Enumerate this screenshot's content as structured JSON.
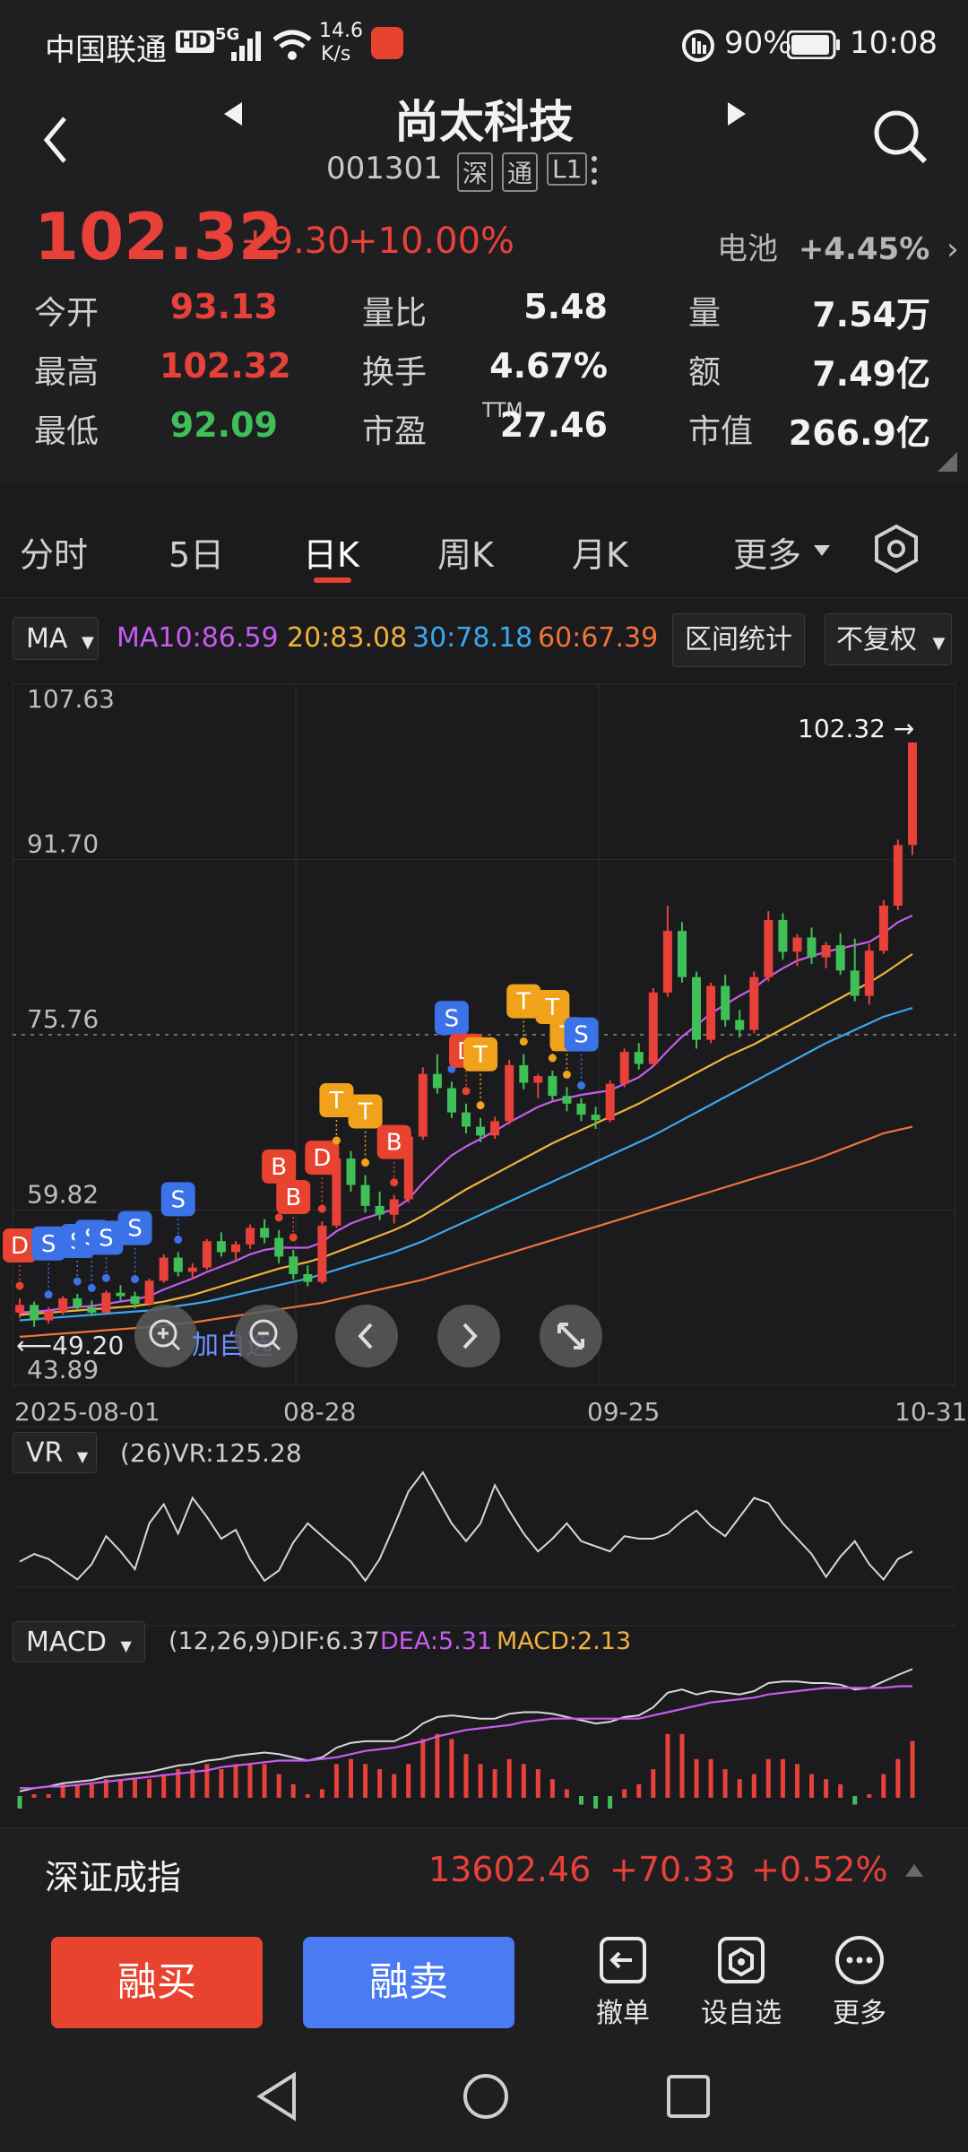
{
  "status_bar": {
    "carrier": "中国联通",
    "hd_badge": "HD",
    "net_type": "5G",
    "speed_value": "14.6",
    "speed_unit": "K/s",
    "battery_percent": "90%",
    "time": "10:08"
  },
  "header": {
    "title": "尚太科技",
    "code": "001301",
    "tags": [
      "深",
      "通",
      "L1"
    ]
  },
  "quote": {
    "price": "102.32",
    "change": "+9.30",
    "change_pct": "+10.00%",
    "sector_name": "电池",
    "sector_change": "+4.45%",
    "stats": [
      {
        "label": "今开",
        "value": "93.13",
        "color": "#e8413a"
      },
      {
        "label": "量比",
        "value": "5.48",
        "color": "#f2f2f2"
      },
      {
        "label": "量",
        "value": "7.54万",
        "color": "#f2f2f2"
      },
      {
        "label": "最高",
        "value": "102.32",
        "color": "#e8413a"
      },
      {
        "label": "换手",
        "value": "4.67%",
        "color": "#f2f2f2"
      },
      {
        "label": "额",
        "value": "7.49亿",
        "color": "#f2f2f2"
      },
      {
        "label": "最低",
        "value": "92.09",
        "color": "#3fbf57"
      },
      {
        "label": "市盈",
        "label_sup": "TTM",
        "value": "27.46",
        "color": "#f2f2f2"
      },
      {
        "label": "市值",
        "value": "266.9亿",
        "color": "#f2f2f2"
      }
    ]
  },
  "tabs": {
    "items": [
      "分时",
      "5日",
      "日K",
      "周K",
      "月K",
      "更多"
    ],
    "active": "日K"
  },
  "indicators": {
    "main_select": "MA",
    "ma10": "MA10:86.59",
    "ma20": "20:83.08",
    "ma30": "30:78.18",
    "ma60": "60:67.39",
    "range_stats_btn": "区间统计",
    "adjust_btn": "不复权",
    "colors": {
      "ma10": "#c75bf0",
      "ma20": "#f0b33a",
      "ma30": "#3aa8f0",
      "ma60": "#f0733a"
    }
  },
  "chart_data": {
    "type": "candlestick",
    "y_ticks": [
      "107.63",
      "91.70",
      "75.76",
      "59.82",
      "43.89"
    ],
    "ylim": [
      43.89,
      107.63
    ],
    "x_labels": [
      "2025-08-01",
      "08-28",
      "09-25",
      "10-31"
    ],
    "last_price_label": "102.32",
    "low_marker_label": "49.20",
    "add_watch_label": "加自选",
    "vr": {
      "select": "VR",
      "label": "(26)VR:125.28"
    },
    "macd": {
      "select": "MACD",
      "params": "(12,26,9)DIF:6.37",
      "dea": "DEA:5.31",
      "macd": "MACD:2.13"
    },
    "candles": [
      [
        50.5,
        51.8,
        50.0,
        51.2
      ],
      [
        51.2,
        51.5,
        49.2,
        49.8
      ],
      [
        49.8,
        51.0,
        49.5,
        50.6
      ],
      [
        50.6,
        52.0,
        50.3,
        51.8
      ],
      [
        51.8,
        52.2,
        50.8,
        51.0
      ],
      [
        51.0,
        51.6,
        50.2,
        50.5
      ],
      [
        50.5,
        52.5,
        50.4,
        52.3
      ],
      [
        52.3,
        53.0,
        51.6,
        52.0
      ],
      [
        52.0,
        52.4,
        50.9,
        51.3
      ],
      [
        51.3,
        53.6,
        51.1,
        53.4
      ],
      [
        53.4,
        55.8,
        53.2,
        55.5
      ],
      [
        55.5,
        56.0,
        53.8,
        54.2
      ],
      [
        54.2,
        55.0,
        53.5,
        54.6
      ],
      [
        54.6,
        57.2,
        54.4,
        57.0
      ],
      [
        57.0,
        57.8,
        55.6,
        56.0
      ],
      [
        56.0,
        57.0,
        55.2,
        56.7
      ],
      [
        56.7,
        58.5,
        56.3,
        58.2
      ],
      [
        58.2,
        59.0,
        56.8,
        57.3
      ],
      [
        57.3,
        58.0,
        55.0,
        55.6
      ],
      [
        55.6,
        56.2,
        53.5,
        54.0
      ],
      [
        54.0,
        54.8,
        52.9,
        53.3
      ],
      [
        53.3,
        58.8,
        53.1,
        58.4
      ],
      [
        58.4,
        65.0,
        58.2,
        64.5
      ],
      [
        64.5,
        65.2,
        61.5,
        62.1
      ],
      [
        62.1,
        63.0,
        59.6,
        60.2
      ],
      [
        60.2,
        61.5,
        58.9,
        59.4
      ],
      [
        59.4,
        61.2,
        58.6,
        60.8
      ],
      [
        60.8,
        67.0,
        60.5,
        66.5
      ],
      [
        66.5,
        72.8,
        66.2,
        72.2
      ],
      [
        72.2,
        74.0,
        70.4,
        70.9
      ],
      [
        70.9,
        71.5,
        68.2,
        68.7
      ],
      [
        68.7,
        69.5,
        66.8,
        67.4
      ],
      [
        67.4,
        68.2,
        66.0,
        66.6
      ],
      [
        66.6,
        68.3,
        66.3,
        67.9
      ],
      [
        67.9,
        73.5,
        67.6,
        73.0
      ],
      [
        73.0,
        74.0,
        70.8,
        71.4
      ],
      [
        71.4,
        72.2,
        70.0,
        72.0
      ],
      [
        72.0,
        72.5,
        69.8,
        70.2
      ],
      [
        70.2,
        71.0,
        68.8,
        69.5
      ],
      [
        69.5,
        70.0,
        67.9,
        68.5
      ],
      [
        68.5,
        69.2,
        67.2,
        68.0
      ],
      [
        68.0,
        71.6,
        67.8,
        71.3
      ],
      [
        71.3,
        74.5,
        71.0,
        74.2
      ],
      [
        74.2,
        75.0,
        72.6,
        73.1
      ],
      [
        73.1,
        80.0,
        72.9,
        79.6
      ],
      [
        79.6,
        87.5,
        79.2,
        85.2
      ],
      [
        85.2,
        86.0,
        80.5,
        81.0
      ],
      [
        81.0,
        81.5,
        74.5,
        75.3
      ],
      [
        75.3,
        80.5,
        75.0,
        80.2
      ],
      [
        80.2,
        81.2,
        76.5,
        77.1
      ],
      [
        77.1,
        78.0,
        75.5,
        76.2
      ],
      [
        76.2,
        81.5,
        75.9,
        81.0
      ],
      [
        81.0,
        87.0,
        80.6,
        86.2
      ],
      [
        86.2,
        86.8,
        82.6,
        83.3
      ],
      [
        83.3,
        84.9,
        82.0,
        84.6
      ],
      [
        84.6,
        85.5,
        82.2,
        82.8
      ],
      [
        82.8,
        84.2,
        81.8,
        83.9
      ],
      [
        83.9,
        85.0,
        81.2,
        81.6
      ],
      [
        81.6,
        84.5,
        78.8,
        79.3
      ],
      [
        79.3,
        84.0,
        78.5,
        83.4
      ],
      [
        83.4,
        88.0,
        83.1,
        87.5
      ],
      [
        87.5,
        93.5,
        87.1,
        93.0
      ],
      [
        93.0,
        102.32,
        92.09,
        102.32
      ]
    ],
    "ma10": [
      50.5,
      50.6,
      50.7,
      50.9,
      51.0,
      51.1,
      51.3,
      51.5,
      51.7,
      52.0,
      52.6,
      53.1,
      53.6,
      54.2,
      54.7,
      55.2,
      55.8,
      56.2,
      56.4,
      56.4,
      56.4,
      56.9,
      57.9,
      58.6,
      59.1,
      59.5,
      59.9,
      60.8,
      62.3,
      63.6,
      64.8,
      65.6,
      66.3,
      67.0,
      67.8,
      68.5,
      69.2,
      69.7,
      70.0,
      70.3,
      70.5,
      70.7,
      71.3,
      71.9,
      72.9,
      74.3,
      75.6,
      76.6,
      77.7,
      78.5,
      79.3,
      80.0,
      81.0,
      81.8,
      82.5,
      82.9,
      83.3,
      83.6,
      83.9,
      84.2,
      85.0,
      86.0,
      86.6
    ],
    "ma20": [
      50.3,
      50.4,
      50.5,
      50.6,
      50.7,
      50.8,
      50.9,
      51.0,
      51.1,
      51.3,
      51.5,
      51.8,
      52.1,
      52.5,
      52.9,
      53.3,
      53.7,
      54.1,
      54.5,
      54.8,
      55.1,
      55.5,
      56.0,
      56.5,
      57.0,
      57.5,
      58.0,
      58.6,
      59.3,
      60.1,
      60.9,
      61.7,
      62.4,
      63.1,
      63.8,
      64.5,
      65.2,
      65.9,
      66.5,
      67.1,
      67.7,
      68.3,
      68.9,
      69.5,
      70.2,
      70.9,
      71.6,
      72.3,
      73.0,
      73.7,
      74.3,
      74.9,
      75.6,
      76.3,
      77.0,
      77.7,
      78.4,
      79.1,
      79.8,
      80.5,
      81.3,
      82.2,
      83.1
    ],
    "ma30": [
      49.8,
      49.9,
      50.0,
      50.1,
      50.2,
      50.3,
      50.4,
      50.5,
      50.6,
      50.7,
      50.9,
      51.1,
      51.3,
      51.5,
      51.8,
      52.1,
      52.4,
      52.7,
      53.0,
      53.3,
      53.6,
      54.0,
      54.4,
      54.8,
      55.2,
      55.6,
      56.0,
      56.5,
      57.0,
      57.6,
      58.2,
      58.8,
      59.4,
      60.0,
      60.6,
      61.2,
      61.8,
      62.4,
      63.0,
      63.6,
      64.2,
      64.8,
      65.4,
      66.0,
      66.6,
      67.3,
      68.0,
      68.7,
      69.4,
      70.1,
      70.8,
      71.5,
      72.2,
      72.9,
      73.6,
      74.3,
      75.0,
      75.6,
      76.2,
      76.8,
      77.4,
      77.8,
      78.2
    ],
    "ma60": [
      48.3,
      48.4,
      48.5,
      48.6,
      48.7,
      48.8,
      48.9,
      49.0,
      49.1,
      49.2,
      49.3,
      49.5,
      49.6,
      49.8,
      50.0,
      50.2,
      50.4,
      50.6,
      50.8,
      51.0,
      51.2,
      51.4,
      51.7,
      52.0,
      52.3,
      52.6,
      52.9,
      53.2,
      53.5,
      53.9,
      54.3,
      54.7,
      55.1,
      55.5,
      55.9,
      56.3,
      56.7,
      57.1,
      57.5,
      57.9,
      58.3,
      58.7,
      59.1,
      59.5,
      59.9,
      60.3,
      60.7,
      61.1,
      61.5,
      61.9,
      62.3,
      62.7,
      63.1,
      63.5,
      63.9,
      64.3,
      64.8,
      65.3,
      65.8,
      66.3,
      66.8,
      67.1,
      67.4
    ],
    "vr_series": [
      110,
      116,
      112,
      104,
      96,
      108,
      130,
      118,
      104,
      140,
      155,
      132,
      160,
      145,
      128,
      135,
      112,
      95,
      103,
      125,
      140,
      130,
      120,
      110,
      95,
      112,
      138,
      165,
      180,
      160,
      140,
      126,
      140,
      170,
      150,
      132,
      118,
      128,
      140,
      126,
      122,
      118,
      130,
      128,
      128,
      132,
      142,
      150,
      138,
      130,
      145,
      160,
      156,
      140,
      128,
      116,
      98,
      114,
      126,
      108,
      96,
      112,
      118
    ],
    "dif_series": [
      -1.2,
      -1.0,
      -0.9,
      -0.7,
      -0.6,
      -0.5,
      -0.3,
      -0.2,
      -0.1,
      0.0,
      0.2,
      0.4,
      0.5,
      0.7,
      0.8,
      1.0,
      1.1,
      1.2,
      1.1,
      0.9,
      0.7,
      0.9,
      1.5,
      1.8,
      1.9,
      1.9,
      1.9,
      2.3,
      3.0,
      3.4,
      3.5,
      3.4,
      3.3,
      3.3,
      3.6,
      3.7,
      3.7,
      3.6,
      3.4,
      3.2,
      3.0,
      3.1,
      3.4,
      3.5,
      4.0,
      4.9,
      5.1,
      4.8,
      5.0,
      4.9,
      4.8,
      5.0,
      5.5,
      5.6,
      5.6,
      5.5,
      5.5,
      5.4,
      5.1,
      5.2,
      5.6,
      6.0,
      6.37
    ],
    "dea_series": [
      -1.0,
      -1.0,
      -0.9,
      -0.9,
      -0.8,
      -0.7,
      -0.6,
      -0.5,
      -0.4,
      -0.3,
      -0.2,
      -0.1,
      0.0,
      0.1,
      0.3,
      0.4,
      0.5,
      0.6,
      0.7,
      0.7,
      0.7,
      0.8,
      0.9,
      1.1,
      1.3,
      1.4,
      1.5,
      1.7,
      1.9,
      2.2,
      2.4,
      2.6,
      2.7,
      2.8,
      2.9,
      3.1,
      3.2,
      3.3,
      3.3,
      3.3,
      3.3,
      3.3,
      3.3,
      3.3,
      3.5,
      3.7,
      3.9,
      4.1,
      4.3,
      4.4,
      4.5,
      4.6,
      4.8,
      4.9,
      5.0,
      5.1,
      5.2,
      5.2,
      5.2,
      5.2,
      5.2,
      5.3,
      5.31
    ]
  },
  "signal_labels": [
    {
      "i": 0,
      "t": "D",
      "c": "#e8432f"
    },
    {
      "i": 2,
      "t": "S",
      "c": "#3b72e8"
    },
    {
      "i": 4,
      "t": "S",
      "c": "#3b72e8"
    },
    {
      "i": 5,
      "t": "S",
      "c": "#3b72e8"
    },
    {
      "i": 6,
      "t": "S",
      "c": "#3b72e8"
    },
    {
      "i": 8,
      "t": "S",
      "c": "#3b72e8"
    },
    {
      "i": 11,
      "t": "S",
      "c": "#3b72e8"
    },
    {
      "i": 18,
      "t": "B",
      "c": "#e8432f"
    },
    {
      "i": 19,
      "t": "B",
      "c": "#e8432f"
    },
    {
      "i": 21,
      "t": "D",
      "c": "#e8432f"
    },
    {
      "i": 22,
      "t": "T",
      "c": "#f0a31a"
    },
    {
      "i": 24,
      "t": "T",
      "c": "#f0a31a"
    },
    {
      "i": 26,
      "t": "B",
      "c": "#e8432f"
    },
    {
      "i": 30,
      "t": "S",
      "c": "#3b72e8"
    },
    {
      "i": 31,
      "t": "D",
      "c": "#e8432f"
    },
    {
      "i": 32,
      "t": "T",
      "c": "#f0a31a"
    },
    {
      "i": 35,
      "t": "T",
      "c": "#f0a31a"
    },
    {
      "i": 37,
      "t": "T",
      "c": "#f0a31a"
    },
    {
      "i": 38,
      "t": "T",
      "c": "#f0a31a"
    },
    {
      "i": 39,
      "t": "S",
      "c": "#3b72e8"
    }
  ],
  "bottom_index": {
    "name": "深证成指",
    "value": "13602.46",
    "change": "+70.33",
    "change_pct": "+0.52%"
  },
  "trade_bar": {
    "buy_label": "融买",
    "sell_label": "融卖",
    "tools": [
      "撤单",
      "设自选",
      "更多"
    ]
  }
}
